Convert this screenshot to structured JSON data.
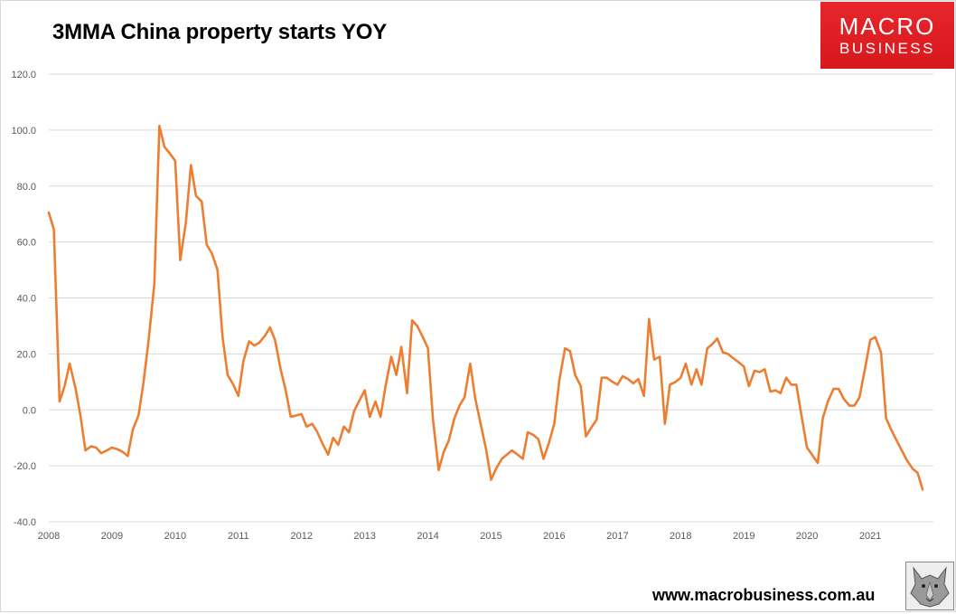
{
  "page": {
    "website": "www.macrobusiness.com.au"
  },
  "logo": {
    "line1": "MACRO",
    "line2": "BUSINESS",
    "color": "#e0201f"
  },
  "chart_data": {
    "type": "line",
    "title": "3MMA China property starts YOY",
    "xlabel": "",
    "ylabel": "",
    "ylim": [
      -40,
      120
    ],
    "yticks": [
      -40,
      -20,
      0,
      20,
      40,
      60,
      80,
      100,
      120
    ],
    "ytick_labels": [
      "-40.0",
      "-20.0",
      "0.0",
      "20.0",
      "40.0",
      "60.0",
      "80.0",
      "100.0",
      "120.0"
    ],
    "xlim": [
      2008,
      2022
    ],
    "xticks": [
      2008,
      2009,
      2010,
      2011,
      2012,
      2013,
      2014,
      2015,
      2016,
      2017,
      2018,
      2019,
      2020,
      2021
    ],
    "xtick_labels": [
      "2008",
      "2009",
      "2010",
      "2011",
      "2012",
      "2013",
      "2014",
      "2015",
      "2016",
      "2017",
      "2018",
      "2019",
      "2020",
      "2021"
    ],
    "grid": true,
    "legend": "none",
    "series": [
      {
        "name": "3MMA China property starts YOY",
        "color": "#ed7d31",
        "x": [
          2008.0,
          2008.08,
          2008.17,
          2008.25,
          2008.33,
          2008.42,
          2008.5,
          2008.58,
          2008.67,
          2008.75,
          2008.83,
          2008.92,
          2009.0,
          2009.08,
          2009.17,
          2009.25,
          2009.33,
          2009.42,
          2009.5,
          2009.58,
          2009.67,
          2009.75,
          2009.83,
          2009.92,
          2010.0,
          2010.08,
          2010.17,
          2010.25,
          2010.33,
          2010.42,
          2010.5,
          2010.58,
          2010.67,
          2010.75,
          2010.83,
          2010.92,
          2011.0,
          2011.08,
          2011.17,
          2011.25,
          2011.33,
          2011.42,
          2011.5,
          2011.58,
          2011.67,
          2011.75,
          2011.83,
          2011.92,
          2012.0,
          2012.08,
          2012.17,
          2012.25,
          2012.33,
          2012.42,
          2012.5,
          2012.58,
          2012.67,
          2012.75,
          2012.83,
          2012.92,
          2013.0,
          2013.08,
          2013.17,
          2013.25,
          2013.33,
          2013.42,
          2013.5,
          2013.58,
          2013.67,
          2013.75,
          2013.83,
          2013.92,
          2014.0,
          2014.08,
          2014.17,
          2014.25,
          2014.33,
          2014.42,
          2014.5,
          2014.58,
          2014.67,
          2014.75,
          2014.83,
          2014.92,
          2015.0,
          2015.08,
          2015.17,
          2015.25,
          2015.33,
          2015.42,
          2015.5,
          2015.58,
          2015.67,
          2015.75,
          2015.83,
          2015.92,
          2016.0,
          2016.08,
          2016.17,
          2016.25,
          2016.33,
          2016.42,
          2016.5,
          2016.58,
          2016.67,
          2016.75,
          2016.83,
          2016.92,
          2017.0,
          2017.08,
          2017.17,
          2017.25,
          2017.33,
          2017.42,
          2017.5,
          2017.58,
          2017.67,
          2017.75,
          2017.83,
          2017.92,
          2018.0,
          2018.08,
          2018.17,
          2018.25,
          2018.33,
          2018.42,
          2018.5,
          2018.58,
          2018.67,
          2018.75,
          2018.83,
          2018.92,
          2019.0,
          2019.08,
          2019.17,
          2019.25,
          2019.33,
          2019.42,
          2019.5,
          2019.58,
          2019.67,
          2019.75,
          2019.83,
          2019.92,
          2020.0,
          2020.08,
          2020.17,
          2020.25,
          2020.33,
          2020.42,
          2020.5,
          2020.58,
          2020.67,
          2020.75,
          2020.83,
          2020.92,
          2021.0,
          2021.08,
          2021.17,
          2021.25,
          2021.33,
          2021.42,
          2021.5,
          2021.58,
          2021.67,
          2021.75,
          2021.83
        ],
        "values": [
          70.5,
          64.5,
          3.0,
          8.5,
          16.5,
          8.0,
          -2.0,
          -14.5,
          -13.0,
          -13.5,
          -15.5,
          -14.5,
          -13.5,
          -14.0,
          -15.0,
          -16.5,
          -7.0,
          -2.0,
          10.0,
          25.0,
          45.0,
          101.5,
          94.0,
          91.5,
          89.0,
          53.5,
          67.0,
          87.5,
          76.5,
          74.5,
          59.0,
          56.0,
          50.0,
          26.0,
          12.5,
          9.0,
          5.0,
          17.5,
          24.5,
          23.0,
          24.0,
          26.5,
          29.5,
          25.0,
          14.5,
          7.0,
          -2.5,
          -2.0,
          -1.5,
          -6.0,
          -5.0,
          -8.0,
          -12.0,
          -16.0,
          -10.0,
          -12.5,
          -6.0,
          -8.0,
          -0.5,
          3.5,
          7.0,
          -2.5,
          3.0,
          -2.5,
          8.5,
          19.0,
          12.5,
          22.5,
          6.0,
          32.0,
          30.0,
          26.0,
          22.0,
          -3.5,
          -21.5,
          -15.0,
          -11.0,
          -3.0,
          1.5,
          4.5,
          16.5,
          4.0,
          -4.5,
          -14.0,
          -25.0,
          -21.0,
          -17.5,
          -16.0,
          -14.5,
          -16.0,
          -17.5,
          -8.0,
          -9.0,
          -10.5,
          -17.5,
          -11.5,
          -5.0,
          10.5,
          22.0,
          21.0,
          12.5,
          8.5,
          -9.5,
          -6.5,
          -3.5,
          11.5,
          11.5,
          10.0,
          9.0,
          12.0,
          11.0,
          9.5,
          11.0,
          5.0,
          32.5,
          18.0,
          19.0,
          -5.0,
          9.0,
          10.0,
          11.5,
          16.5,
          9.0,
          14.5,
          9.0,
          22.0,
          23.5,
          25.5,
          20.5,
          20.0,
          18.5,
          17.0,
          15.5,
          8.5,
          14.0,
          13.5,
          14.5,
          6.5,
          7.0,
          6.0,
          11.5,
          9.0,
          9.0,
          -3.0,
          -13.5,
          -16.0,
          -19.0,
          -3.0,
          3.0,
          7.5,
          7.5,
          4.0,
          1.5,
          1.5,
          4.5,
          15.0,
          25.0,
          26.0,
          20.5,
          -3.0,
          -7.0,
          -11.0,
          -14.5,
          -18.0,
          -21.0,
          -22.5,
          -28.5
        ]
      }
    ]
  }
}
